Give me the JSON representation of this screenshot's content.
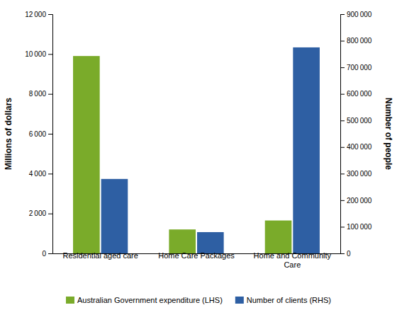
{
  "chart_data": {
    "type": "bar",
    "categories": [
      "Residential aged care",
      "Home Care Packages",
      "Home and Community\nCare"
    ],
    "series": [
      {
        "name": "Australian Government expenditure (LHS)",
        "color": "#7aab2a",
        "values": [
          9900,
          1200,
          1650
        ],
        "axis": "y"
      },
      {
        "name": "Number of clients (RHS)",
        "color": "#2e5fa3",
        "values": [
          280000,
          80000,
          775000
        ],
        "axis": "y2"
      }
    ],
    "ylabel": "Millions of dollars",
    "y2label": "Number of people",
    "ylim": [
      0,
      12000
    ],
    "yticks": [
      0,
      {
        "value": 2000,
        "label": "2 000"
      },
      {
        "value": 4000,
        "label": "4 000"
      },
      {
        "value": 6000,
        "label": "6 000"
      },
      {
        "value": 8000,
        "label": "8 000"
      },
      {
        "value": 10000,
        "label": "10 000"
      },
      {
        "value": 12000,
        "label": "12 000"
      }
    ],
    "y2lim": [
      0,
      900000
    ],
    "y2ticks": [
      0,
      {
        "value": 100000,
        "label": "100 000"
      },
      {
        "value": 200000,
        "label": "200 000"
      },
      {
        "value": 300000,
        "label": "300 000"
      },
      {
        "value": 400000,
        "label": "400 000"
      },
      {
        "value": 500000,
        "label": "500 000"
      },
      {
        "value": 600000,
        "label": "600 000"
      },
      {
        "value": 700000,
        "label": "700 000"
      },
      {
        "value": 800000,
        "label": "800 000"
      },
      {
        "value": 900000,
        "label": "900 000"
      }
    ],
    "grid": false,
    "legend": "bottom"
  }
}
